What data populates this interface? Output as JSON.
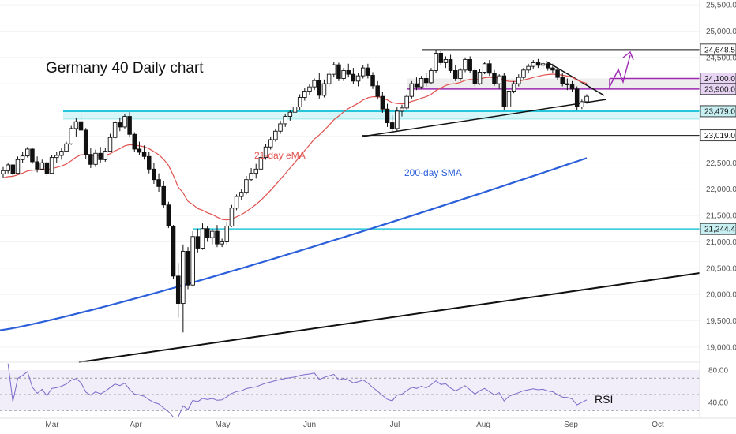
{
  "chart_data": {
    "type": "candlestick",
    "title": "Germany 40 Daily chart",
    "x_months": [
      "Mar",
      "Apr",
      "May",
      "Jun",
      "Jul",
      "Aug",
      "Sep",
      "Oct"
    ],
    "y_ticks": [
      "25,500.0",
      "25,000.0",
      "24,500.0",
      "24,000.0",
      "23,500.0",
      "23,000.0",
      "22,500.0",
      "22,000.0",
      "21,500.0",
      "21,000.0",
      "20,500.0",
      "20,000.0",
      "19,500.0",
      "19,000.0"
    ],
    "y_tick_values": [
      25500,
      25000,
      24500,
      24000,
      23500,
      23000,
      22500,
      22000,
      21500,
      21000,
      20500,
      20000,
      19500,
      19000
    ],
    "price_levels": [
      {
        "label": "24,648.5",
        "value": 24648.5,
        "color": "#ffffff",
        "text_color": "#111111"
      },
      {
        "label": "24,100.0",
        "value": 24100.0,
        "color": "#e6d4f2",
        "text_color": "#111111"
      },
      {
        "label": "23,900.0",
        "value": 23900.0,
        "color": "#e6d4f2",
        "text_color": "#111111"
      },
      {
        "label": "23,479.0",
        "value": 23479.0,
        "color": "#c8f0f3",
        "text_color": "#111111"
      },
      {
        "label": "23,019.0",
        "value": 23019.0,
        "color": "#ffffff",
        "text_color": "#111111"
      },
      {
        "label": "21,244.4",
        "value": 21244.4,
        "color": "#c8f0f3",
        "text_color": "#111111"
      }
    ],
    "annotations": {
      "ema_label": "21-day eMA",
      "sma_label": "200-day SMA",
      "rsi_label": "RSI"
    },
    "rsi_ticks": [
      "80.00",
      "40.00"
    ],
    "rsi_tick_values": [
      80,
      40
    ],
    "colors": {
      "ema": "#e0524f",
      "sma": "#2b5fd9",
      "rsi": "#7a6bc9",
      "support_zone": "#26c6da",
      "resistance_zone": "#9c27b0",
      "candle_up": "#ffffff",
      "candle_down": "#111111"
    },
    "candles": [
      [
        22290,
        22420,
        22210,
        22350
      ],
      [
        22350,
        22500,
        22300,
        22460
      ],
      [
        22460,
        22470,
        22250,
        22300
      ],
      [
        22300,
        22620,
        22280,
        22560
      ],
      [
        22560,
        22700,
        22500,
        22630
      ],
      [
        22630,
        22800,
        22600,
        22760
      ],
      [
        22760,
        22790,
        22480,
        22520
      ],
      [
        22520,
        22620,
        22320,
        22380
      ],
      [
        22380,
        22560,
        22360,
        22500
      ],
      [
        22500,
        22540,
        22250,
        22300
      ],
      [
        22300,
        22650,
        22280,
        22600
      ],
      [
        22600,
        22700,
        22500,
        22640
      ],
      [
        22640,
        22780,
        22560,
        22720
      ],
      [
        22720,
        22900,
        22700,
        22860
      ],
      [
        22860,
        23200,
        22840,
        23150
      ],
      [
        23150,
        23350,
        23000,
        23280
      ],
      [
        23280,
        23420,
        23080,
        23120
      ],
      [
        23120,
        23160,
        22580,
        22660
      ],
      [
        22660,
        22780,
        22400,
        22470
      ],
      [
        22470,
        22750,
        22420,
        22680
      ],
      [
        22680,
        22800,
        22500,
        22560
      ],
      [
        22560,
        22780,
        22520,
        22720
      ],
      [
        22720,
        23050,
        22700,
        22980
      ],
      [
        22980,
        23300,
        22950,
        23260
      ],
      [
        23260,
        23360,
        23100,
        23180
      ],
      [
        23180,
        23420,
        23150,
        23380
      ],
      [
        23380,
        23460,
        22980,
        23040
      ],
      [
        23040,
        23080,
        22700,
        22760
      ],
      [
        22760,
        22900,
        22640,
        22700
      ],
      [
        22700,
        22830,
        22560,
        22620
      ],
      [
        22620,
        22700,
        22300,
        22380
      ],
      [
        22380,
        22500,
        22100,
        22180
      ],
      [
        22180,
        22300,
        21950,
        22050
      ],
      [
        22050,
        22150,
        21650,
        21700
      ],
      [
        21700,
        21760,
        21260,
        21300
      ],
      [
        21300,
        21320,
        20300,
        20350
      ],
      [
        20350,
        20600,
        19560,
        19830
      ],
      [
        19830,
        20950,
        19280,
        20820
      ],
      [
        20820,
        20900,
        20100,
        20180
      ],
      [
        20180,
        21200,
        20150,
        21100
      ],
      [
        21100,
        21250,
        20800,
        20880
      ],
      [
        20880,
        21350,
        20850,
        21250
      ],
      [
        21250,
        21300,
        21000,
        21080
      ],
      [
        21080,
        21250,
        20950,
        21200
      ],
      [
        21200,
        21320,
        20900,
        20960
      ],
      [
        20960,
        21060,
        20900,
        21000
      ],
      [
        21000,
        21380,
        20950,
        21300
      ],
      [
        21300,
        21700,
        21280,
        21640
      ],
      [
        21640,
        21900,
        21600,
        21860
      ],
      [
        21860,
        22000,
        21800,
        21940
      ],
      [
        21940,
        22250,
        21900,
        22180
      ],
      [
        22180,
        22400,
        22150,
        22300
      ],
      [
        22300,
        22480,
        22200,
        22380
      ],
      [
        22380,
        22650,
        22350,
        22600
      ],
      [
        22600,
        22850,
        22560,
        22800
      ],
      [
        22800,
        23000,
        22750,
        22940
      ],
      [
        22940,
        23150,
        22900,
        23100
      ],
      [
        23100,
        23300,
        23050,
        23240
      ],
      [
        23240,
        23420,
        23180,
        23380
      ],
      [
        23380,
        23500,
        23300,
        23460
      ],
      [
        23460,
        23620,
        23400,
        23560
      ],
      [
        23560,
        23800,
        23500,
        23740
      ],
      [
        23740,
        23920,
        23680,
        23860
      ],
      [
        23860,
        24000,
        23780,
        23940
      ],
      [
        23940,
        24100,
        23880,
        24060
      ],
      [
        24060,
        24200,
        23720,
        23780
      ],
      [
        23780,
        24080,
        23740,
        24000
      ],
      [
        24000,
        24250,
        23950,
        24180
      ],
      [
        24180,
        24420,
        24120,
        24360
      ],
      [
        24360,
        24400,
        24050,
        24100
      ],
      [
        24100,
        24300,
        24050,
        24250
      ],
      [
        24250,
        24380,
        24120,
        24180
      ],
      [
        24180,
        24300,
        24000,
        24050
      ],
      [
        24050,
        24200,
        23950,
        24150
      ],
      [
        24150,
        24350,
        24100,
        24300
      ],
      [
        24300,
        24380,
        24100,
        24160
      ],
      [
        24160,
        24220,
        23900,
        23960
      ],
      [
        23960,
        24050,
        23700,
        23760
      ],
      [
        23760,
        23850,
        23450,
        23520
      ],
      [
        23520,
        23620,
        23180,
        23260
      ],
      [
        23260,
        23400,
        23080,
        23150
      ],
      [
        23150,
        23560,
        23100,
        23480
      ],
      [
        23480,
        23600,
        23380,
        23540
      ],
      [
        23540,
        23800,
        23500,
        23760
      ],
      [
        23760,
        24050,
        23720,
        24000
      ],
      [
        24000,
        24120,
        23880,
        23940
      ],
      [
        23940,
        24150,
        23900,
        24100
      ],
      [
        24100,
        24200,
        23950,
        24020
      ],
      [
        24020,
        24300,
        24000,
        24250
      ],
      [
        24250,
        24648,
        24200,
        24580
      ],
      [
        24580,
        24620,
        24350,
        24400
      ],
      [
        24400,
        24520,
        24300,
        24460
      ],
      [
        24460,
        24550,
        24200,
        24250
      ],
      [
        24250,
        24350,
        24050,
        24100
      ],
      [
        24100,
        24300,
        24050,
        24260
      ],
      [
        24260,
        24500,
        24220,
        24460
      ],
      [
        24460,
        24520,
        24200,
        24250
      ],
      [
        24250,
        24300,
        23950,
        24000
      ],
      [
        24000,
        24280,
        23980,
        24220
      ],
      [
        24220,
        24420,
        24180,
        24380
      ],
      [
        24380,
        24450,
        24150,
        24200
      ],
      [
        24200,
        24260,
        23960,
        24000
      ],
      [
        24000,
        24180,
        23900,
        24150
      ],
      [
        24150,
        24200,
        23500,
        23560
      ],
      [
        23560,
        23900,
        23520,
        23860
      ],
      [
        23860,
        24050,
        23820,
        24000
      ],
      [
        24000,
        24180,
        23950,
        24120
      ],
      [
        24120,
        24300,
        24080,
        24260
      ],
      [
        24260,
        24380,
        24200,
        24330
      ],
      [
        24330,
        24450,
        24280,
        24400
      ],
      [
        24400,
        24470,
        24300,
        24350
      ],
      [
        24350,
        24420,
        24280,
        24380
      ],
      [
        24380,
        24400,
        24250,
        24300
      ],
      [
        24300,
        24380,
        24200,
        24260
      ],
      [
        24260,
        24300,
        24080,
        24120
      ],
      [
        24120,
        24200,
        23950,
        24000
      ],
      [
        24000,
        24100,
        23880,
        23980
      ],
      [
        23980,
        24050,
        23850,
        23900
      ],
      [
        23900,
        23950,
        23500,
        23560
      ],
      [
        23560,
        23700,
        23520,
        23660
      ],
      [
        23660,
        23800,
        23620,
        23760
      ]
    ]
  }
}
